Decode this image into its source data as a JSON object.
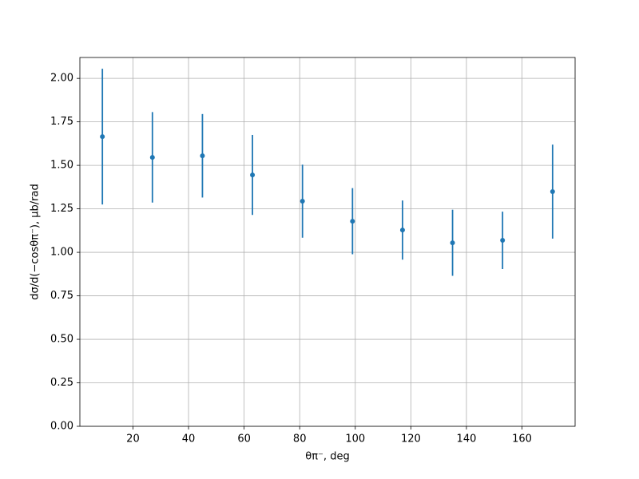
{
  "chart_data": {
    "type": "errorbar",
    "x_label": "θπ⁻, deg",
    "y_label": "dσ/d(−cosθπ⁻), μb/rad",
    "series": [
      {
        "color": "#1f77b4",
        "x": [
          9,
          27,
          45,
          63,
          81,
          99,
          117,
          135,
          153,
          171
        ],
        "values": [
          1.665,
          1.546,
          1.555,
          1.445,
          1.294,
          1.179,
          1.128,
          1.055,
          1.069,
          1.349
        ],
        "errors": [
          0.39,
          0.26,
          0.24,
          0.23,
          0.21,
          0.19,
          0.17,
          0.19,
          0.165,
          0.27
        ]
      }
    ],
    "xlim": [
      0.9,
      179.1
    ],
    "xticks": [
      20,
      40,
      60,
      80,
      100,
      120,
      140,
      160
    ],
    "ylim": [
      0,
      2.12
    ],
    "yticks": [
      {
        "value": 0,
        "label": "0.00"
      },
      {
        "value": 0.25,
        "label": "0.25"
      },
      {
        "value": 0.5,
        "label": "0.50"
      },
      {
        "value": 0.75,
        "label": "0.75"
      },
      {
        "value": 1,
        "label": "1.00"
      },
      {
        "value": 1.25,
        "label": "1.25"
      },
      {
        "value": 1.5,
        "label": "1.50"
      },
      {
        "value": 1.75,
        "label": "1.75"
      },
      {
        "value": 2,
        "label": "2.00"
      }
    ],
    "grid": true
  }
}
